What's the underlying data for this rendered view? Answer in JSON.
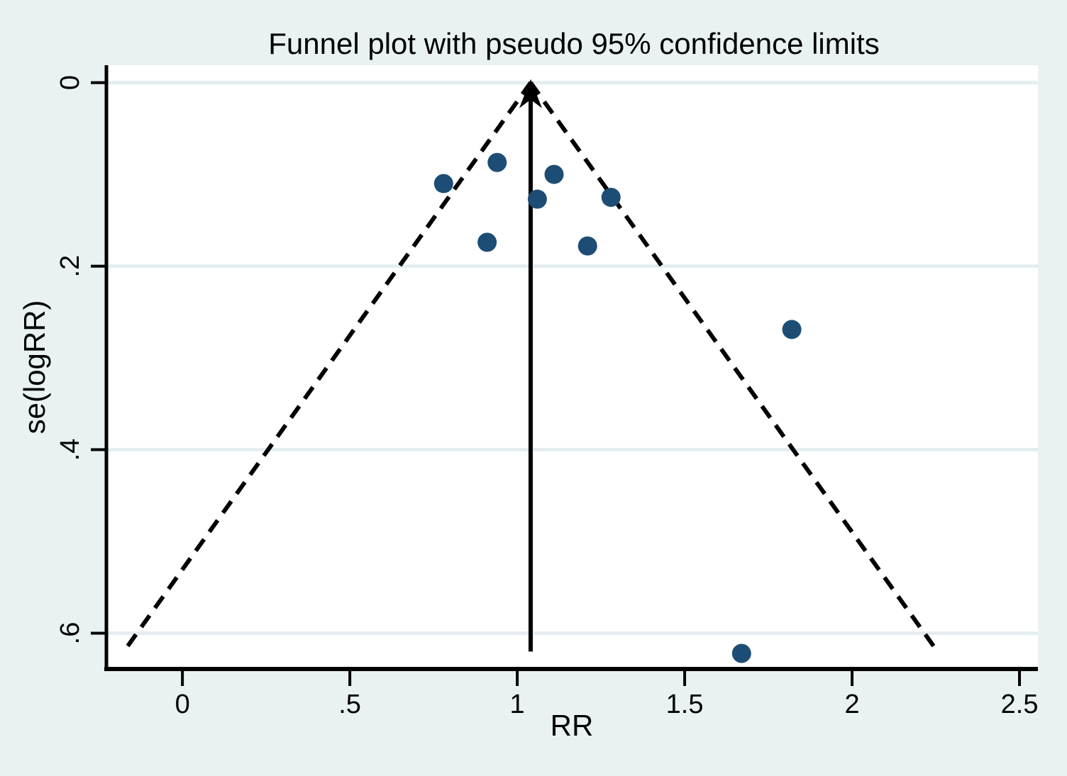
{
  "chart_data": {
    "type": "scatter",
    "title": "Funnel plot with pseudo 95% confidence limits",
    "xlabel": "RR",
    "ylabel": "se(logRR)",
    "x_ticks": {
      "values": [
        0,
        0.5,
        1,
        1.5,
        2,
        2.5
      ],
      "labels": [
        "0",
        ".5",
        "1",
        "1.5",
        "2",
        "2.5"
      ]
    },
    "y_ticks": {
      "values": [
        0,
        0.2,
        0.4,
        0.6
      ],
      "labels": [
        "0",
        ".2",
        ".4",
        ".6"
      ]
    },
    "xlim": [
      -0.227,
      2.555
    ],
    "ylim": [
      -0.019,
      0.639
    ],
    "y_axis_reversed": true,
    "grid": "horizontal",
    "legend": "none",
    "points": [
      {
        "rr": 0.78,
        "se": 0.11
      },
      {
        "rr": 0.94,
        "se": 0.087
      },
      {
        "rr": 1.06,
        "se": 0.127
      },
      {
        "rr": 1.11,
        "se": 0.1
      },
      {
        "rr": 1.28,
        "se": 0.125
      },
      {
        "rr": 0.91,
        "se": 0.174
      },
      {
        "rr": 1.21,
        "se": 0.178
      },
      {
        "rr": 1.82,
        "se": 0.269
      },
      {
        "rr": 1.67,
        "se": 0.622
      }
    ],
    "pooled_estimate_rr": 1.04,
    "funnel": {
      "apex_rr": 1.04,
      "z": 1.96,
      "se_max": 0.62,
      "line_style": "dashed"
    },
    "colors": {
      "point": "#1d4d75",
      "line": "#000000",
      "background": "#e9f1f2",
      "plot_background": "#ffffff",
      "gridline": "#e4eef1"
    }
  }
}
